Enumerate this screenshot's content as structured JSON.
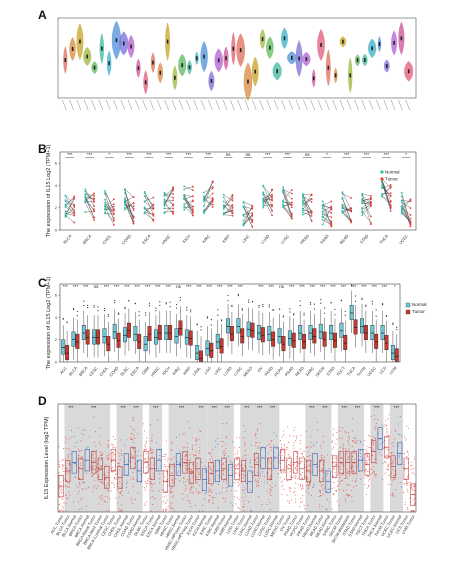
{
  "panels": {
    "A": {
      "letter": "A"
    },
    "B": {
      "letter": "B"
    },
    "C": {
      "letter": "C"
    },
    "D": {
      "letter": "D"
    }
  },
  "colors": {
    "normal": "#2bbfa4",
    "tumor": "#e8413c",
    "normal_box": "#6ec6d6",
    "tumor_box": "#c8382f",
    "shade": "#d9d9d9",
    "d_tumor": "#e8413c",
    "d_normal": "#3a6fd8"
  },
  "chart_data": [
    {
      "panel": "A",
      "type": "violin",
      "title": "",
      "ylabel": "",
      "categories": [],
      "series": []
    },
    {
      "panel": "B",
      "type": "paired-line",
      "ylabel": "The expression of IL15 Log2 (TPM+1)",
      "ylim": [
        0,
        7
      ],
      "yticks": [
        "0",
        "2",
        "4",
        "6"
      ],
      "legend": {
        "placement": "top-right",
        "entries": [
          "Normal",
          "Tumor"
        ]
      },
      "categories": [
        "BLCA",
        "BRCA",
        "CHOL",
        "COAD",
        "ESCA",
        "HNSC",
        "KICH",
        "KIRC",
        "KIRP",
        "LIHC",
        "LUAD",
        "LUSC",
        "PRAD",
        "PAAD",
        "READ",
        "STAD",
        "THCA",
        "UCEC"
      ],
      "significance": [
        "***",
        "***",
        "*",
        "***",
        "***",
        "***",
        "***",
        "***",
        "ns",
        "ns",
        "***",
        "***",
        "ns",
        "*",
        "***",
        "***",
        "***",
        "*"
      ],
      "series": [
        {
          "name": "Normal",
          "values": [
            2.2,
            2.6,
            2.5,
            2.8,
            2.4,
            2.5,
            2.9,
            2.6,
            2.3,
            1.5,
            3.1,
            3.1,
            2.2,
            1.5,
            2.5,
            2.2,
            3.9,
            2.3
          ]
        },
        {
          "name": "Tumor",
          "values": [
            1.8,
            2.0,
            1.7,
            1.8,
            1.7,
            2.6,
            2.6,
            3.2,
            2.2,
            1.4,
            2.4,
            2.3,
            2.1,
            1.3,
            1.7,
            1.8,
            3.0,
            1.6
          ]
        }
      ]
    },
    {
      "panel": "C",
      "type": "box",
      "ylabel": "The expression of IL15 Log2 (TPM+1)",
      "ylim": [
        0,
        7
      ],
      "yticks": [
        "0",
        "2",
        "4",
        "6"
      ],
      "legend": {
        "placement": "right",
        "entries": [
          "Normal",
          "Tumor"
        ]
      },
      "categories": [
        "ACC",
        "BLCA",
        "BRCA",
        "CESC",
        "CHOL",
        "COAD",
        "DLBC",
        "ESCA",
        "GBM",
        "HNSC",
        "KICH",
        "KIRC",
        "KIRP",
        "LAML",
        "LGG",
        "LIHC",
        "LUAD",
        "LUSC",
        "MESO",
        "OV",
        "PAAD",
        "PCPG",
        "PRAD",
        "READ",
        "SARC",
        "SKCM",
        "STAD",
        "TGCT",
        "THCA",
        "THYM",
        "UCEC",
        "UCS",
        "UVM"
      ],
      "significance": [
        "***",
        "***",
        "***",
        "ns",
        "***",
        "***",
        "***",
        "***",
        "***",
        "***",
        "***",
        "ns",
        "***",
        "***",
        "***",
        "***",
        "***",
        "***",
        "",
        "***",
        "***",
        "ns",
        "***",
        "***",
        "***",
        "***",
        "***",
        "***",
        "***",
        "***",
        "***",
        "***",
        "*"
      ],
      "series": [
        {
          "name": "Normal",
          "values": [
            1.3,
            2.0,
            2.6,
            2.2,
            2.3,
            2.7,
            2.4,
            2.5,
            1.6,
            2.2,
            2.6,
            2.3,
            2.2,
            0.8,
            1.2,
            1.8,
            3.2,
            3.2,
            2.9,
            2.6,
            2.5,
            2.3,
            2.1,
            2.6,
            2.6,
            2.7,
            2.6,
            2.8,
            4.4,
            3.2,
            2.6,
            2.6,
            0.8
          ]
        },
        {
          "name": "Tumor",
          "values": [
            0.8,
            1.8,
            2.2,
            2.2,
            1.6,
            1.9,
            2.8,
            1.8,
            2.5,
            2.6,
            2.6,
            3.0,
            2.1,
            0.3,
            1.0,
            1.4,
            2.5,
            2.3,
            2.8,
            2.4,
            2.0,
            1.6,
            1.9,
            1.8,
            2.3,
            2.0,
            1.9,
            1.7,
            3.1,
            2.6,
            1.8,
            1.7,
            0.5
          ]
        }
      ]
    },
    {
      "panel": "D",
      "type": "box-jitter",
      "ylabel": "IL15 Expression Level (log2 TPM)",
      "categories": [
        "ACC.Tumor",
        "BLCA.Tumor",
        "BLCA.Normal",
        "BRCA.Tumor",
        "BRCA.Normal",
        "BRCA-Basal.Tumor",
        "BRCA-Her2.Tumor",
        "BRCA-Luminal.Tumor",
        "CESC.Tumor",
        "CHOL.Tumor",
        "CHOL.Normal",
        "COAD.Tumor",
        "COAD.Normal",
        "DLBC.Tumor",
        "ESCA.Tumor",
        "ESCA.Normal",
        "GBM.Tumor",
        "HNSC.Tumor",
        "HNSC.Normal",
        "HNSC-HPVpos.Tumor",
        "HNSC-HPVneg.Tumor",
        "KICH.Tumor",
        "KICH.Normal",
        "KIRC.Tumor",
        "KIRC.Normal",
        "KIRP.Tumor",
        "KIRP.Normal",
        "LGG.Tumor",
        "LIHC.Tumor",
        "LIHC.Normal",
        "LUAD.Tumor",
        "LUAD.Normal",
        "LUSC.Tumor",
        "LUSC.Normal",
        "MESO.Tumor",
        "OV.Tumor",
        "PAAD.Tumor",
        "PCPG.Tumor",
        "PRAD.Tumor",
        "PRAD.Normal",
        "READ.Tumor",
        "READ.Normal",
        "SARC.Tumor",
        "SKCM.Tumor",
        "SKCM.Metastasis",
        "STAD.Tumor",
        "STAD.Normal",
        "TGCT.Tumor",
        "THCA.Tumor",
        "THCA.Normal",
        "THYM.Tumor",
        "UCEC.Tumor",
        "UCEC.Normal",
        "UCS.Tumor",
        "UVM.Tumor"
      ],
      "significance_shaded_groups": [
        "BLCA",
        "BRCA",
        "CHOL",
        "COAD",
        "ESCA",
        "HNSC",
        "KICH",
        "KIRC",
        "KIRP",
        "LIHC",
        "LUAD",
        "LUSC",
        "PRAD",
        "READ",
        "SKCM",
        "STAD",
        "THCA",
        "UCEC"
      ],
      "series": [
        {
          "name": "Tumor",
          "values": [
            1.2,
            1.9,
            2.3,
            2.0,
            2.4,
            2.3,
            2.0,
            1.6,
            2.4,
            1.6,
            2.2,
            2.5,
            1.9,
            2.3,
            2.0,
            2.4,
            1.4,
            1.7,
            2.2,
            2.3,
            1.8,
            2.0,
            1.5,
            1.8,
            1.9,
            2.0,
            1.7,
            2.0,
            1.9,
            1.4,
            2.2,
            2.5,
            2.0,
            2.5,
            2.4,
            2.0,
            2.3,
            2.0,
            1.9,
            2.2,
            1.9,
            1.4,
            2.1,
            2.3,
            2.3,
            2.3,
            2.4,
            2.2,
            2.8,
            3.4,
            3.0,
            2.1,
            2.7,
            2.0,
            0.8
          ]
        }
      ]
    }
  ]
}
